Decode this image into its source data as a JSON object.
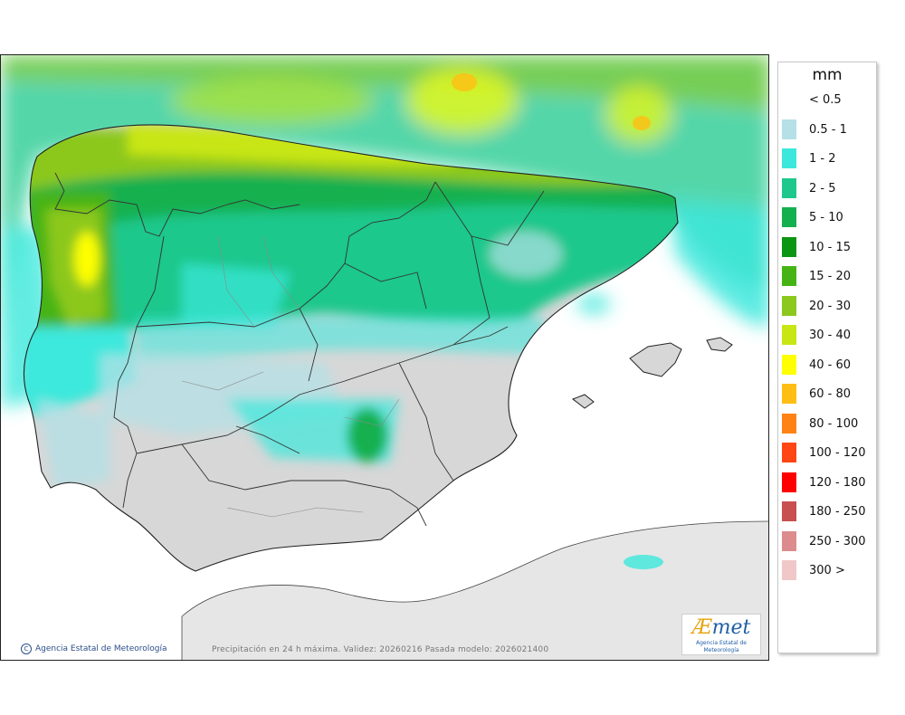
{
  "map": {
    "caption": "Precipitación en 24 h máxima. Validez: 20260216 Pasada modelo: 2026021400",
    "credit": "Agencia Estatal de Meteorología",
    "logo": {
      "word_ae": "Æ",
      "word_rest": "met",
      "subtitle": "Agencia Estatal de Meteorología"
    }
  },
  "legend": {
    "unit": "mm",
    "items": [
      {
        "label": "< 0.5",
        "color": "#ffffff"
      },
      {
        "label": "0.5 - 1",
        "color": "#b4e0e6"
      },
      {
        "label": "1 - 2",
        "color": "#3ce8dc"
      },
      {
        "label": "2 - 5",
        "color": "#1ec88c"
      },
      {
        "label": "5 - 10",
        "color": "#14b050"
      },
      {
        "label": "10 - 15",
        "color": "#0a9614"
      },
      {
        "label": "15 - 20",
        "color": "#46b414"
      },
      {
        "label": "20 - 30",
        "color": "#8cc81e"
      },
      {
        "label": "30 - 40",
        "color": "#c8e614"
      },
      {
        "label": "40 - 60",
        "color": "#ffff00"
      },
      {
        "label": "60 - 80",
        "color": "#ffbe14"
      },
      {
        "label": "80 - 100",
        "color": "#ff8214"
      },
      {
        "label": "100 - 120",
        "color": "#ff4614"
      },
      {
        "label": "120 - 180",
        "color": "#ff0000"
      },
      {
        "label": "180 - 250",
        "color": "#c85050"
      },
      {
        "label": "250 - 300",
        "color": "#dc8c8c"
      },
      {
        "label": "300 >",
        "color": "#f0c8c8"
      }
    ]
  }
}
